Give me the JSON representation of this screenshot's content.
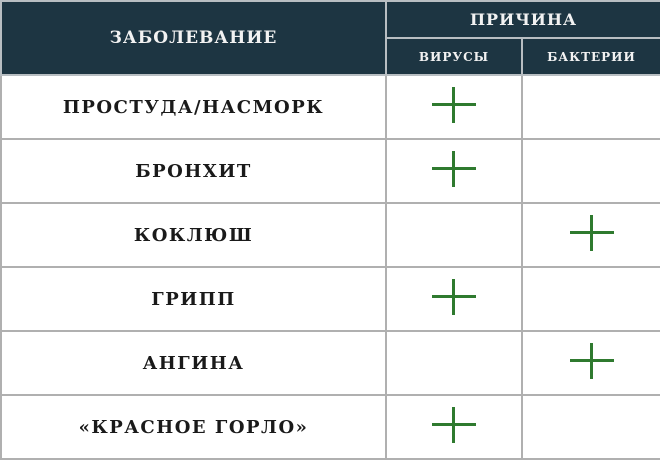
{
  "header": {
    "disease": "ЗАБОЛЕВАНИЕ",
    "cause": "ПРИЧИНА",
    "viruses": "ВИРУСЫ",
    "bacteria": "БАКТЕРИИ"
  },
  "colors": {
    "header_bg": "#1d3542",
    "plus": "#2f7a2f"
  },
  "rows": [
    {
      "disease": "ПРОСТУДА/НАСМОРК",
      "virus": true,
      "bacteria": false
    },
    {
      "disease": "БРОНХИТ",
      "virus": true,
      "bacteria": false
    },
    {
      "disease": "КОКЛЮШ",
      "virus": false,
      "bacteria": true
    },
    {
      "disease": "ГРИПП",
      "virus": true,
      "bacteria": false
    },
    {
      "disease": "АНГИНА",
      "virus": false,
      "bacteria": true
    },
    {
      "disease": "«КРАСНОЕ ГОРЛО»",
      "virus": true,
      "bacteria": false
    }
  ]
}
